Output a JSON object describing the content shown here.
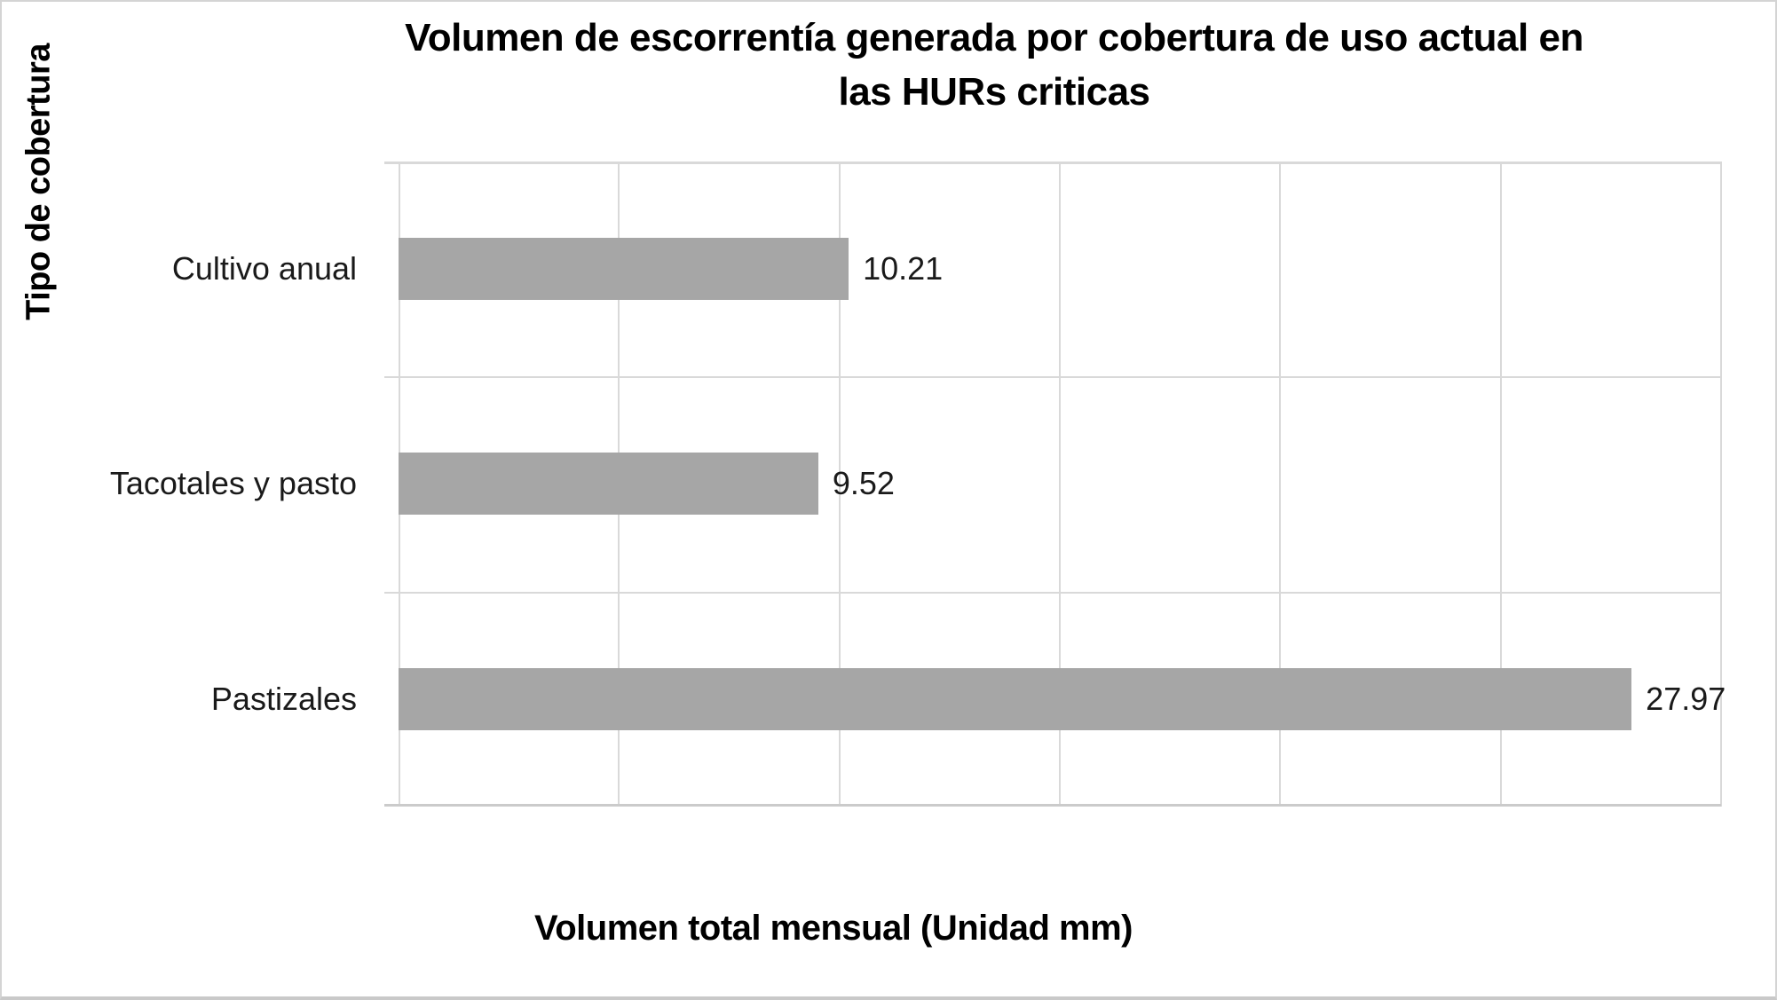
{
  "window": {
    "background": "#FFFFFF",
    "frame_border_color": "#D4D4D4"
  },
  "chart_data": {
    "type": "bar",
    "orientation": "horizontal",
    "title": "Volumen de escorrentía generada por cobertura de uso actual en las HURs criticas",
    "title_lines": [
      "Volumen de escorrentía generada por cobertura de uso actual en",
      "las HURs criticas"
    ],
    "xlabel": "Volumen total mensual (Unidad mm)",
    "ylabel": "Tipo de cobertura",
    "categories": [
      "Cultivo anual",
      "Tacotales y pasto",
      "Pastizales"
    ],
    "values": [
      10.21,
      9.52,
      27.97
    ],
    "value_labels": [
      "10.21",
      "9.52",
      "27.97"
    ],
    "xlim": [
      0,
      30
    ],
    "x_gridline_step": 5,
    "x_tick_labels_visible": false,
    "grid": true,
    "legend": false,
    "bar_color": "#A6A6A6",
    "gridline_color": "#D9D9D9",
    "axis_line_color": "#CBCBCB",
    "label_color": "#1A1A1A",
    "title_color": "#000000"
  }
}
